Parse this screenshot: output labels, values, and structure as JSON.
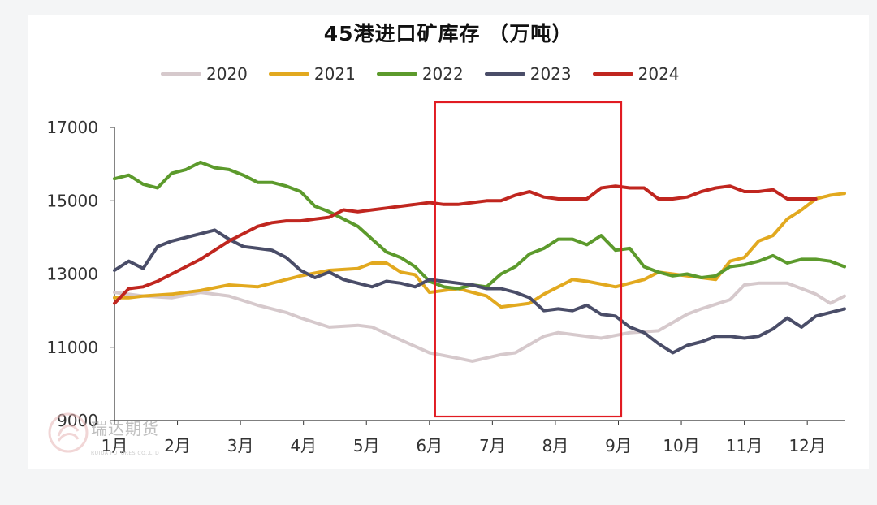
{
  "chart_data": {
    "type": "line",
    "title": "45港进口矿库存 （万吨）",
    "xlabel": "",
    "ylabel": "",
    "ylim": [
      9000,
      17000
    ],
    "yticks": [
      9000,
      11000,
      13000,
      15000,
      17000
    ],
    "yticklabels": [
      "9000",
      "11000",
      "13000",
      "15000",
      "17000"
    ],
    "month_labels": [
      "1月",
      "2月",
      "3月",
      "4月",
      "5月",
      "6月",
      "7月",
      "8月",
      "9月",
      "10月",
      "11月",
      "12月"
    ],
    "grid": false,
    "legend_position": "top",
    "x_unit": "week of year (1–52)",
    "series": [
      {
        "name": "2020",
        "color": "#d6c9cc",
        "x": [
          1,
          3,
          5,
          7,
          9,
          11,
          13,
          14,
          16,
          18,
          19,
          21,
          23,
          25,
          26,
          28,
          29,
          31,
          32,
          33,
          35,
          37,
          39,
          41,
          42,
          44,
          45,
          46,
          48,
          50,
          51,
          52
        ],
        "values": [
          12500,
          12400,
          12350,
          12500,
          12400,
          12150,
          11950,
          11800,
          11550,
          11600,
          11550,
          11200,
          10850,
          10700,
          10620,
          10800,
          10850,
          11300,
          11400,
          11350,
          11250,
          11400,
          11450,
          11900,
          12050,
          12300,
          12700,
          12750,
          12750,
          12450,
          12200,
          12400
        ]
      },
      {
        "name": "2021",
        "color": "#e2a91f",
        "x": [
          1,
          2,
          3,
          5,
          7,
          9,
          11,
          12,
          14,
          16,
          18,
          19,
          20,
          21,
          22,
          23,
          24,
          25,
          26,
          27,
          28,
          29,
          30,
          31,
          32,
          33,
          34,
          36,
          38,
          39,
          40,
          41,
          42,
          43,
          44,
          45,
          46,
          47,
          48,
          49,
          50,
          51,
          52
        ],
        "values": [
          12350,
          12350,
          12400,
          12450,
          12550,
          12700,
          12650,
          12750,
          12950,
          13100,
          13150,
          13300,
          13300,
          13050,
          12980,
          12500,
          12550,
          12600,
          12500,
          12400,
          12100,
          12150,
          12200,
          12450,
          12650,
          12850,
          12800,
          12650,
          12850,
          13050,
          13000,
          12950,
          12900,
          12850,
          13350,
          13450,
          13900,
          14050,
          14500,
          14750,
          15050,
          15150,
          15200
        ]
      },
      {
        "name": "2022",
        "color": "#5c9a2c",
        "x": [
          1,
          2,
          3,
          4,
          5,
          6,
          7,
          8,
          9,
          10,
          11,
          12,
          13,
          14,
          15,
          16,
          17,
          18,
          19,
          20,
          21,
          22,
          23,
          24,
          25,
          26,
          27,
          28,
          29,
          30,
          31,
          32,
          33,
          34,
          35,
          36,
          37,
          38,
          39,
          40,
          41,
          42,
          43,
          44,
          45,
          46,
          47,
          48,
          49,
          50,
          51,
          52
        ],
        "values": [
          15600,
          15700,
          15450,
          15350,
          15750,
          15850,
          16050,
          15900,
          15850,
          15700,
          15500,
          15500,
          15400,
          15250,
          14850,
          14700,
          14500,
          14300,
          13950,
          13600,
          13450,
          13200,
          12800,
          12650,
          12600,
          12700,
          12650,
          13000,
          13200,
          13550,
          13700,
          13950,
          13950,
          13800,
          14050,
          13650,
          13700,
          13200,
          13050,
          12950,
          13000,
          12900,
          12950,
          13200,
          13250,
          13350,
          13500,
          13300,
          13400,
          13400,
          13350,
          13200
        ]
      },
      {
        "name": "2023",
        "color": "#4a4d68",
        "x": [
          1,
          2,
          3,
          4,
          5,
          6,
          7,
          8,
          9,
          10,
          11,
          12,
          13,
          14,
          15,
          16,
          17,
          18,
          19,
          20,
          21,
          22,
          23,
          24,
          25,
          26,
          27,
          28,
          29,
          30,
          31,
          32,
          33,
          34,
          35,
          36,
          37,
          38,
          39,
          40,
          41,
          42,
          43,
          44,
          45,
          46,
          47,
          48,
          49,
          50,
          51,
          52
        ],
        "values": [
          13100,
          13350,
          13150,
          13750,
          13900,
          14000,
          14100,
          14200,
          13950,
          13750,
          13700,
          13650,
          13450,
          13100,
          12900,
          13050,
          12850,
          12750,
          12650,
          12800,
          12750,
          12650,
          12850,
          12800,
          12750,
          12700,
          12600,
          12600,
          12500,
          12350,
          12000,
          12050,
          12000,
          12150,
          11900,
          11850,
          11550,
          11400,
          11100,
          10850,
          11050,
          11150,
          11300,
          11300,
          11250,
          11300,
          11500,
          11800,
          11550,
          11850,
          11950,
          12050
        ]
      },
      {
        "name": "2024",
        "color": "#c0261f",
        "x": [
          1,
          2,
          3,
          4,
          5,
          6,
          7,
          8,
          9,
          10,
          11,
          12,
          13,
          14,
          15,
          16,
          17,
          18,
          19,
          20,
          21,
          22,
          23,
          24,
          25,
          26,
          27,
          28,
          29,
          30,
          31,
          32,
          33,
          34,
          35,
          36,
          37,
          38,
          39,
          40,
          41,
          42,
          43,
          44,
          45,
          46,
          47,
          48,
          49,
          50
        ],
        "values": [
          12200,
          12600,
          12650,
          12800,
          13000,
          13200,
          13400,
          13650,
          13900,
          14100,
          14300,
          14400,
          14450,
          14450,
          14500,
          14550,
          14750,
          14700,
          14750,
          14800,
          14850,
          14900,
          14950,
          14900,
          14900,
          14950,
          15000,
          15000,
          15150,
          15250,
          15100,
          15050,
          15050,
          15050,
          15350,
          15400,
          15350,
          15350,
          15050,
          15050,
          15100,
          15250,
          15350,
          15400,
          15250,
          15250,
          15300,
          15050,
          15050,
          15050
        ]
      }
    ]
  },
  "highlight_box_color": "#e11b22",
  "watermark": {
    "text": "瑞达期货",
    "subtitle": "RUIDA FUTURES CO.,LTD"
  }
}
